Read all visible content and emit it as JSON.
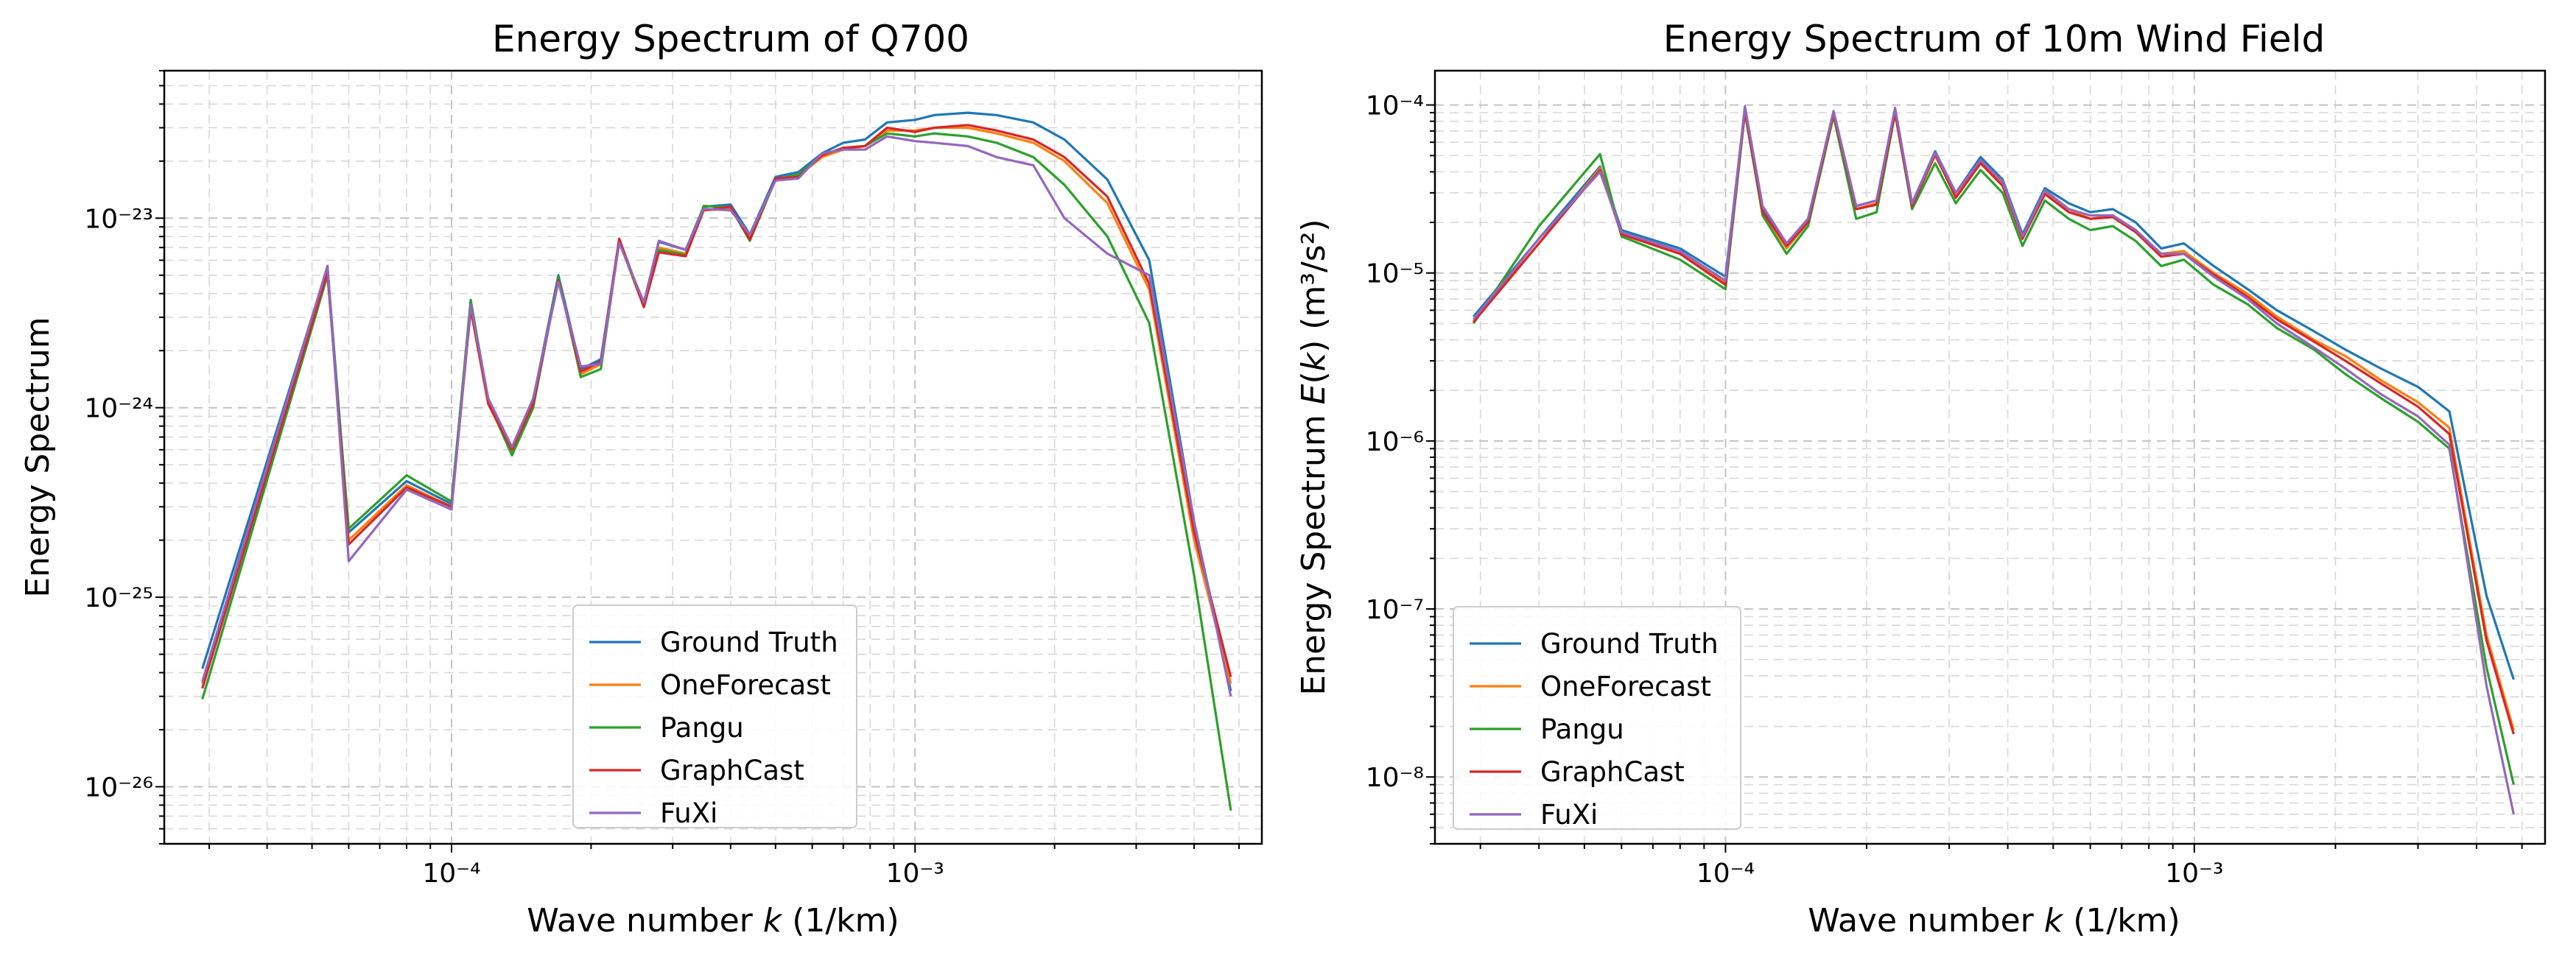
{
  "chart_data": [
    {
      "type": "line",
      "title": "Energy Spectrum of Q700",
      "xlabel": "Wave number k (1/km)",
      "ylabel": "Energy Spectrum",
      "xscale": "log",
      "yscale": "log",
      "xlim": [
        2.4e-05,
        0.0056
      ],
      "ylim": [
        5e-27,
        6e-23
      ],
      "xticks": [
        {
          "value": 0.0001,
          "label": "10⁻⁴"
        },
        {
          "value": 0.001,
          "label": "10⁻³"
        }
      ],
      "yticks": [
        {
          "value": 1e-26,
          "label": "10⁻²⁶"
        },
        {
          "value": 1e-25,
          "label": "10⁻²⁵"
        },
        {
          "value": 1e-24,
          "label": "10⁻²⁴"
        },
        {
          "value": 1e-23,
          "label": "10⁻²³"
        }
      ],
      "grid": true,
      "legend_position": "bottom-center",
      "x": [
        2.9e-05,
        5.4e-05,
        6e-05,
        8e-05,
        0.0001,
        0.00011,
        0.00012,
        0.000135,
        0.00015,
        0.00017,
        0.00019,
        0.00021,
        0.00023,
        0.00026,
        0.00028,
        0.00032,
        0.00035,
        0.0004,
        0.00044,
        0.0005,
        0.00056,
        0.00063,
        0.0007,
        0.00078,
        0.00087,
        0.001,
        0.0011,
        0.0013,
        0.0015,
        0.0018,
        0.0021,
        0.0026,
        0.0032,
        0.004,
        0.0048
      ],
      "series": [
        {
          "name": "Ground Truth",
          "color": "#1f77b4",
          "values": [
            4.2e-26,
            5.5e-24,
            2.2e-25,
            4.1e-25,
            3.1e-25,
            3.6e-24,
            1.1e-24,
            6e-25,
            1.1e-24,
            5e-24,
            1.6e-24,
            1.8e-24,
            7.7e-24,
            3.5e-24,
            7.5e-24,
            6.8e-24,
            1.15e-23,
            1.18e-23,
            8.2e-24,
            1.65e-23,
            1.75e-23,
            2.2e-23,
            2.5e-23,
            2.6e-23,
            3.2e-23,
            3.3e-23,
            3.5e-23,
            3.6e-23,
            3.5e-23,
            3.2e-23,
            2.6e-23,
            1.6e-23,
            6e-24,
            2.5e-25,
            3.2e-26
          ]
        },
        {
          "name": "OneForecast",
          "color": "#ff7f0e",
          "values": [
            3.5e-26,
            5.3e-24,
            2e-25,
            3.9e-25,
            3e-25,
            3.4e-24,
            1.05e-24,
            5.8e-25,
            1.05e-24,
            4.8e-24,
            1.5e-24,
            1.7e-24,
            7.5e-24,
            3.4e-24,
            7e-24,
            6.5e-24,
            1.1e-23,
            1.12e-23,
            7.8e-24,
            1.6e-23,
            1.68e-23,
            2.1e-23,
            2.3e-23,
            2.4e-23,
            2.9e-23,
            2.9e-23,
            3e-23,
            3e-23,
            2.8e-23,
            2.5e-23,
            2e-23,
            1.2e-23,
            4.2e-24,
            2e-25,
            3.5e-26
          ]
        },
        {
          "name": "Pangu",
          "color": "#2ca02c",
          "values": [
            2.9e-26,
            5e-24,
            2.3e-25,
            4.4e-25,
            3.2e-25,
            3.7e-24,
            1.08e-24,
            5.6e-25,
            1e-24,
            4.9e-24,
            1.45e-24,
            1.6e-24,
            7.6e-24,
            3.4e-24,
            6.8e-24,
            6.4e-24,
            1.16e-23,
            1.14e-23,
            7.6e-24,
            1.6e-23,
            1.7e-23,
            2.15e-23,
            2.35e-23,
            2.4e-23,
            2.8e-23,
            2.7e-23,
            2.8e-23,
            2.7e-23,
            2.5e-23,
            2.1e-23,
            1.5e-23,
            8e-24,
            2.8e-24,
            1.3e-25,
            7.5e-27
          ]
        },
        {
          "name": "GraphCast",
          "color": "#d62728",
          "values": [
            3.3e-26,
            5.2e-24,
            1.9e-25,
            3.8e-25,
            3e-25,
            3.3e-24,
            1.05e-24,
            6e-25,
            1.05e-24,
            4.7e-24,
            1.55e-24,
            1.75e-24,
            7.8e-24,
            3.4e-24,
            6.6e-24,
            6.3e-24,
            1.1e-23,
            1.15e-23,
            7.7e-24,
            1.62e-23,
            1.65e-23,
            2.15e-23,
            2.35e-23,
            2.4e-23,
            3e-23,
            2.85e-23,
            3e-23,
            3.1e-23,
            2.9e-23,
            2.6e-23,
            2.1e-23,
            1.3e-23,
            4.5e-24,
            2.2e-25,
            3.8e-26
          ]
        },
        {
          "name": "FuXi",
          "color": "#9467bd",
          "values": [
            3.6e-26,
            5.6e-24,
            1.55e-25,
            3.7e-25,
            2.9e-25,
            3.5e-24,
            1.12e-24,
            6.2e-25,
            1.12e-24,
            4.6e-24,
            1.65e-24,
            1.7e-24,
            7.4e-24,
            3.6e-24,
            7.6e-24,
            6.8e-24,
            1.12e-23,
            1.1e-23,
            8.2e-24,
            1.58e-23,
            1.62e-23,
            2.2e-23,
            2.3e-23,
            2.3e-23,
            2.7e-23,
            2.55e-23,
            2.5e-23,
            2.4e-23,
            2.1e-23,
            1.9e-23,
            1e-23,
            6.5e-24,
            5e-24,
            2.5e-25,
            3e-26
          ]
        }
      ]
    },
    {
      "type": "line",
      "title": "Energy Spectrum of 10m Wind Field",
      "xlabel": "Wave number k (1/km)",
      "ylabel": "Energy Spectrum E(k) (m³/s²)",
      "xscale": "log",
      "yscale": "log",
      "xlim": [
        2.4e-05,
        0.0056
      ],
      "ylim": [
        4e-09,
        0.00016
      ],
      "xticks": [
        {
          "value": 0.0001,
          "label": "10⁻⁴"
        },
        {
          "value": 0.001,
          "label": "10⁻³"
        }
      ],
      "yticks": [
        {
          "value": 1e-08,
          "label": "10⁻⁸"
        },
        {
          "value": 1e-07,
          "label": "10⁻⁷"
        },
        {
          "value": 1e-06,
          "label": "10⁻⁶"
        },
        {
          "value": 1e-05,
          "label": "10⁻⁵"
        },
        {
          "value": 0.0001,
          "label": "10⁻⁴"
        }
      ],
      "grid": true,
      "legend_position": "lower-left",
      "x": [
        2.9e-05,
        4e-05,
        5.4e-05,
        6e-05,
        8e-05,
        0.0001,
        0.00011,
        0.00012,
        0.000135,
        0.00015,
        0.00017,
        0.00019,
        0.00021,
        0.00023,
        0.00025,
        0.00028,
        0.00031,
        0.00035,
        0.00039,
        0.00043,
        0.00048,
        0.00054,
        0.0006,
        0.00067,
        0.00075,
        0.00085,
        0.00095,
        0.0011,
        0.0013,
        0.0015,
        0.0018,
        0.0021,
        0.0025,
        0.003,
        0.0035,
        0.0042,
        0.0048
      ],
      "series": [
        {
          "name": "Ground Truth",
          "color": "#1f77b4",
          "values": [
            5.5e-06,
            1.6e-05,
            4.3e-05,
            1.8e-05,
            1.4e-05,
            9.5e-06,
            9.6e-05,
            2.4e-05,
            1.5e-05,
            2.1e-05,
            9e-05,
            2.5e-05,
            2.7e-05,
            9.3e-05,
            2.6e-05,
            5.3e-05,
            3e-05,
            4.9e-05,
            3.6e-05,
            1.7e-05,
            3.2e-05,
            2.6e-05,
            2.3e-05,
            2.4e-05,
            2e-05,
            1.4e-05,
            1.5e-05,
            1.1e-05,
            8e-06,
            6e-06,
            4.5e-06,
            3.5e-06,
            2.7e-06,
            2.1e-06,
            1.5e-06,
            1.2e-07,
            3.8e-08
          ]
        },
        {
          "name": "OneForecast",
          "color": "#ff7f0e",
          "values": [
            5.2e-06,
            1.5e-05,
            4.2e-05,
            1.7e-05,
            1.3e-05,
            8.8e-06,
            9.4e-05,
            2.3e-05,
            1.4e-05,
            2e-05,
            8.8e-05,
            2.4e-05,
            2.6e-05,
            9.1e-05,
            2.5e-05,
            5e-05,
            2.9e-05,
            4.6e-05,
            3.4e-05,
            1.6e-05,
            3e-05,
            2.4e-05,
            2.1e-05,
            2.2e-05,
            1.8e-05,
            1.3e-05,
            1.35e-05,
            1e-05,
            7.5e-06,
            5.5e-06,
            4e-06,
            3.2e-06,
            2.3e-06,
            1.7e-06,
            1.2e-06,
            7e-08,
            1.9e-08
          ]
        },
        {
          "name": "Pangu",
          "color": "#2ca02c",
          "values": [
            5e-06,
            1.9e-05,
            5.1e-05,
            1.65e-05,
            1.2e-05,
            8e-06,
            9e-05,
            2.2e-05,
            1.3e-05,
            1.9e-05,
            8.6e-05,
            2.1e-05,
            2.3e-05,
            8.9e-05,
            2.4e-05,
            4.5e-05,
            2.6e-05,
            4.1e-05,
            3e-05,
            1.45e-05,
            2.7e-05,
            2.1e-05,
            1.8e-05,
            1.9e-05,
            1.55e-05,
            1.1e-05,
            1.2e-05,
            8.5e-06,
            6.5e-06,
            4.7e-06,
            3.5e-06,
            2.5e-06,
            1.8e-06,
            1.3e-06,
            9e-07,
            4.5e-08,
            9e-09
          ]
        },
        {
          "name": "GraphCast",
          "color": "#d62728",
          "values": [
            5.1e-06,
            1.5e-05,
            4.1e-05,
            1.7e-05,
            1.3e-05,
            8.5e-06,
            9.3e-05,
            2.3e-05,
            1.45e-05,
            2e-05,
            8.9e-05,
            2.4e-05,
            2.55e-05,
            9e-05,
            2.5e-05,
            5.1e-05,
            2.8e-05,
            4.5e-05,
            3.3e-05,
            1.6e-05,
            2.95e-05,
            2.3e-05,
            2.1e-05,
            2.15e-05,
            1.75e-05,
            1.25e-05,
            1.3e-05,
            9.8e-06,
            7.2e-06,
            5.3e-06,
            3.9e-06,
            3e-06,
            2.2e-06,
            1.6e-06,
            1.1e-06,
            6.5e-08,
            1.8e-08
          ]
        },
        {
          "name": "FuXi",
          "color": "#9467bd",
          "values": [
            5.3e-06,
            1.6e-05,
            4e-05,
            1.75e-05,
            1.35e-05,
            9e-06,
            9.8e-05,
            2.5e-05,
            1.5e-05,
            2.1e-05,
            9.2e-05,
            2.5e-05,
            2.7e-05,
            9.6e-05,
            2.6e-05,
            5.2e-05,
            3e-05,
            4.7e-05,
            3.5e-05,
            1.65e-05,
            3.1e-05,
            2.4e-05,
            2.2e-05,
            2.2e-05,
            1.8e-05,
            1.3e-05,
            1.3e-05,
            9.5e-06,
            7e-06,
            5e-06,
            3.6e-06,
            2.7e-06,
            1.9e-06,
            1.4e-06,
            9.5e-07,
            3.5e-08,
            6e-09
          ]
        }
      ]
    }
  ]
}
